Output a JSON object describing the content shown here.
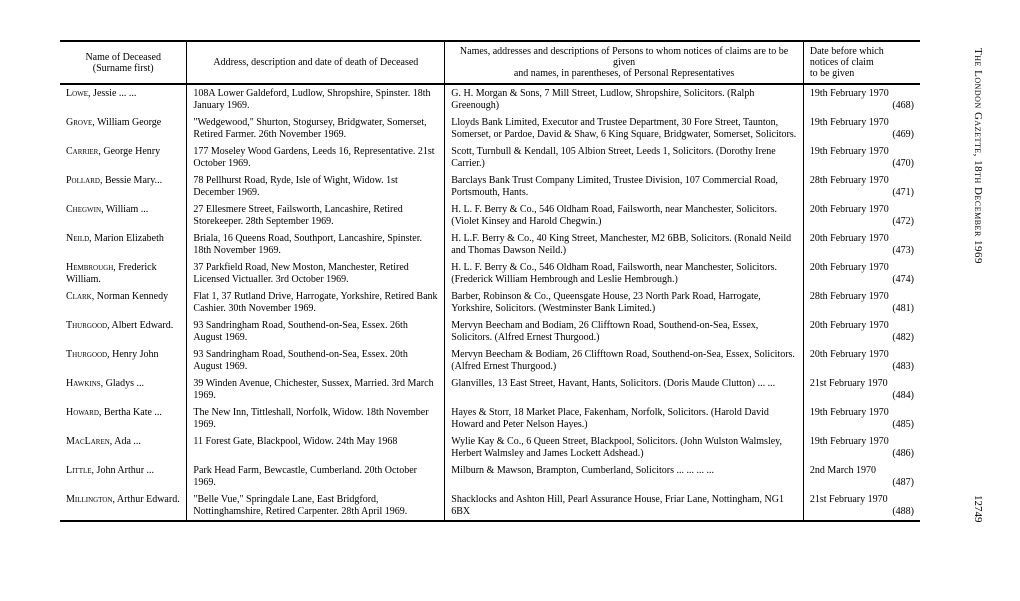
{
  "headers": {
    "name": "Name of Deceased\n(Surname first)",
    "address": "Address, description and date of death of Deceased",
    "persons": "Names, addresses and descriptions of Persons to whom notices of claims are to be given\nand names, in parentheses, of Personal Representatives",
    "date": "Date before which\nnotices of claim\nto be given"
  },
  "side_text": "The London Gazette, 18th December 1969",
  "page_number": "12749",
  "rows": [
    {
      "surname": "Lowe",
      "forenames": ", Jessie   ...   ...",
      "address": "108A Lower Galdeford, Ludlow, Shropshire, Spinster. 18th January 1969.",
      "persons": "G. H. Morgan & Sons, 7 Mill Street, Ludlow, Shropshire, Solicitors. (Ralph Greenough)",
      "date": "19th February 1970",
      "ref": "(468)"
    },
    {
      "surname": "Grove",
      "forenames": ", William George",
      "address": "\"Wedgewood,\" Shurton, Stogursey, Bridgwater, Somerset, Retired Farmer. 26th November 1969.",
      "persons": "Lloyds Bank Limited, Executor and Trustee Department, 30 Fore Street, Taunton, Somerset, or Pardoe, David & Shaw, 6 King Square, Bridgwater, Somerset, Solicitors.",
      "date": "19th February 1970",
      "ref": "(469)"
    },
    {
      "surname": "Carrier",
      "forenames": ", George Henry",
      "address": "177 Moseley Wood Gardens, Leeds 16, Representative. 21st October 1969.",
      "persons": "Scott, Turnbull & Kendall, 105 Albion Street, Leeds 1, Solicitors. (Dorothy Irene Carrier.)",
      "date": "19th February 1970",
      "ref": "(470)"
    },
    {
      "surname": "Pollard",
      "forenames": ", Bessie Mary...",
      "address": "78 Pellhurst Road, Ryde, Isle of Wight, Widow. 1st December 1969.",
      "persons": "Barclays Bank Trust Company Limited, Trustee Division, 107 Commercial Road, Portsmouth, Hants.",
      "date": "28th February 1970",
      "ref": "(471)"
    },
    {
      "surname": "Chegwin",
      "forenames": ", William   ...",
      "address": "27 Ellesmere Street, Failsworth, Lancashire, Retired Storekeeper. 28th September 1969.",
      "persons": "H. L. F. Berry & Co., 546 Oldham Road, Failsworth, near Manchester, Solicitors. (Violet Kinsey and Harold Chegwin.)",
      "date": "20th February 1970",
      "ref": "(472)"
    },
    {
      "surname": "Neild",
      "forenames": ", Marion Elizabeth",
      "address": "Briala, 16 Queens Road, Southport, Lancashire, Spinster. 18th November 1969.",
      "persons": "H. L.F. Berry & Co., 40 King Street, Manchester, M2 6BB, Solicitors. (Ronald Neild and Thomas Dawson Neild.)",
      "date": "20th February 1970",
      "ref": "(473)"
    },
    {
      "surname": "Hembrough",
      "forenames": ", Frederick William.",
      "address": "37 Parkfield Road, New Moston, Manchester, Retired Licensed Victualler. 3rd October 1969.",
      "persons": "H. L. F. Berry & Co., 546 Oldham Road, Failsworth, near Manchester, Solicitors. (Frederick William Hembrough and Leslie Hembrough.)",
      "date": "20th February 1970",
      "ref": "(474)"
    },
    {
      "surname": "Clark",
      "forenames": ", Norman Kennedy",
      "address": "Flat 1, 37 Rutland Drive, Harrogate, Yorkshire, Retired Bank Cashier. 30th November 1969.",
      "persons": "Barber, Robinson & Co., Queensgate House, 23 North Park Road, Harrogate, Yorkshire, Solicitors. (Westminster Bank Limited.)",
      "date": "28th February 1970",
      "ref": "(481)"
    },
    {
      "surname": "Thurgood",
      "forenames": ", Albert Edward.",
      "address": "93 Sandringham Road, Southend-on-Sea, Essex. 26th August 1969.",
      "persons": "Mervyn Beecham and Bodiam, 26 Clifftown Road, Southend-on-Sea, Essex, Solicitors. (Alfred Ernest Thurgood.)",
      "date": "20th February 1970",
      "ref": "(482)"
    },
    {
      "surname": "Thurgood",
      "forenames": ", Henry John",
      "address": "93 Sandringham Road, Southend-on-Sea, Essex. 20th August 1969.",
      "persons": "Mervyn Beecham & Bodiam, 26 Clifftown Road, Southend-on-Sea, Essex, Solicitors. (Alfred Ernest Thurgood.)",
      "date": "20th February 1970",
      "ref": "(483)"
    },
    {
      "surname": "Hawkins",
      "forenames": ", Gladys   ...",
      "address": "39 Winden Avenue, Chichester, Sussex, Married. 3rd March 1969.",
      "persons": "Glanvilles, 13 East Street, Havant, Hants, Solicitors. (Doris Maude Clutton) ...   ...",
      "date": "21st February 1970",
      "ref": "(484)"
    },
    {
      "surname": "Howard",
      "forenames": ", Bertha Kate ...",
      "address": "The New Inn, Tittleshall, Norfolk, Widow. 18th November 1969.",
      "persons": "Hayes & Storr, 18 Market Place, Fakenham, Norfolk, Solicitors. (Harold David Howard and Peter Nelson Hayes.)",
      "date": "19th February 1970",
      "ref": "(485)"
    },
    {
      "surname": "MacLaren",
      "forenames": ", Ada   ...",
      "address": "11 Forest Gate, Blackpool, Widow. 24th May 1968",
      "persons": "Wylie Kay & Co., 6 Queen Street, Blackpool, Solicitors. (John Wulston Walmsley, Herbert Walmsley and James Lockett Adshead.)",
      "date": "19th February 1970",
      "ref": "(486)"
    },
    {
      "surname": "Little",
      "forenames": ", John Arthur ...",
      "address": "Park Head Farm, Bewcastle, Cumberland. 20th October 1969.",
      "persons": "Milburn & Mawson, Brampton, Cumberland, Solicitors   ...   ...   ...   ...",
      "date": "2nd March 1970",
      "ref": "(487)"
    },
    {
      "surname": "Millington",
      "forenames": ", Arthur Edward.",
      "address": "\"Belle Vue,\" Springdale Lane, East Bridgford, Nottinghamshire, Retired Carpenter. 28th April 1969.",
      "persons": "Shacklocks and Ashton Hill, Pearl Assurance House, Friar Lane, Nottingham, NG1 6BX",
      "date": "21st February 1970",
      "ref": "(488)"
    }
  ]
}
